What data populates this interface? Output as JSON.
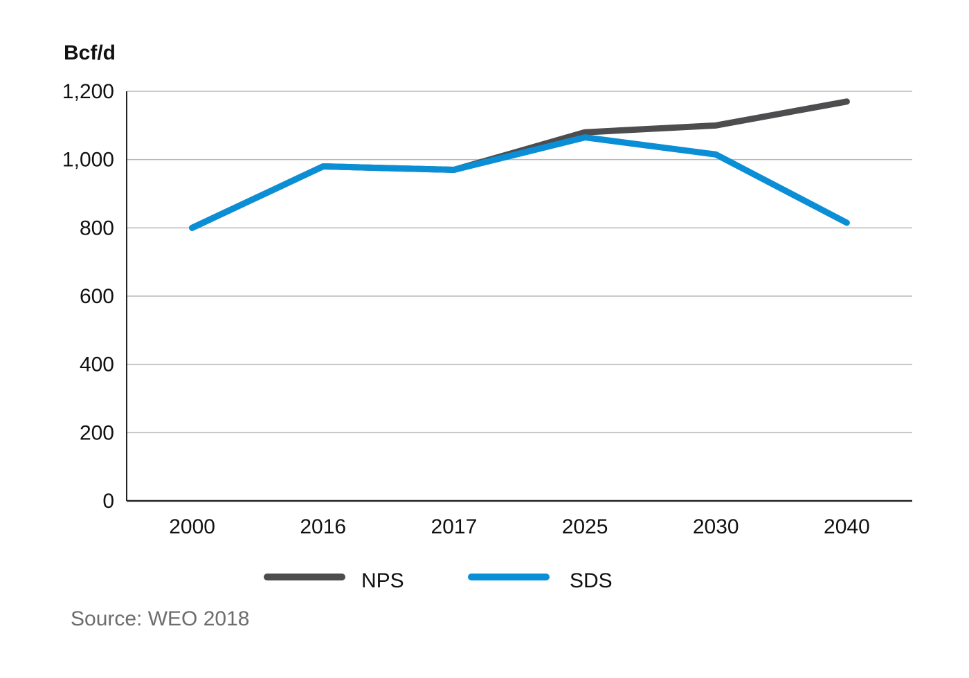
{
  "chart_data": {
    "type": "line",
    "title": "",
    "ylabel": "Bcf/d",
    "xlabel": "",
    "categories": [
      "2000",
      "2016",
      "2017",
      "2025",
      "2030",
      "2040"
    ],
    "ylim": [
      0,
      1200
    ],
    "yticks": [
      0,
      200,
      400,
      600,
      800,
      1000,
      1200
    ],
    "ytick_labels": [
      "0",
      "200",
      "400",
      "600",
      "800",
      "1,000",
      "1,200"
    ],
    "grid": true,
    "legend_position": "bottom",
    "series": [
      {
        "name": "NPS",
        "color": "#4d4d4f",
        "values": [
          800,
          980,
          970,
          1080,
          1100,
          1170
        ]
      },
      {
        "name": "SDS",
        "color": "#0a8fd6",
        "values": [
          800,
          980,
          970,
          1065,
          1015,
          815
        ]
      }
    ]
  },
  "source": "Source: WEO 2018"
}
